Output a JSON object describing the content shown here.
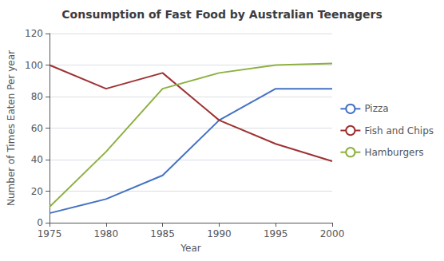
{
  "chart_data": {
    "type": "line",
    "title": "Consumption of Fast Food by Australian Teenagers",
    "xlabel": "Year",
    "ylabel": "Number of Times Eaten Per year",
    "x": [
      1975,
      1980,
      1985,
      1990,
      1995,
      2000
    ],
    "series": [
      {
        "name": "Pizza",
        "color": "#4472C4",
        "values": [
          6,
          15,
          30,
          65,
          85,
          85
        ]
      },
      {
        "name": "Fish and Chips",
        "color": "#9E3132",
        "values": [
          100,
          85,
          95,
          65,
          50,
          39
        ]
      },
      {
        "name": "Hamburgers",
        "color": "#8DB040",
        "values": [
          10,
          45,
          85,
          95,
          100,
          101
        ]
      }
    ],
    "xlim": [
      1975,
      2000
    ],
    "xticks": [
      1975,
      1980,
      1985,
      1990,
      1995,
      2000
    ],
    "ylim": [
      0,
      120
    ],
    "yticks": [
      0,
      20,
      40,
      60,
      80,
      100,
      120
    ],
    "grid": true,
    "legend": "right"
  }
}
